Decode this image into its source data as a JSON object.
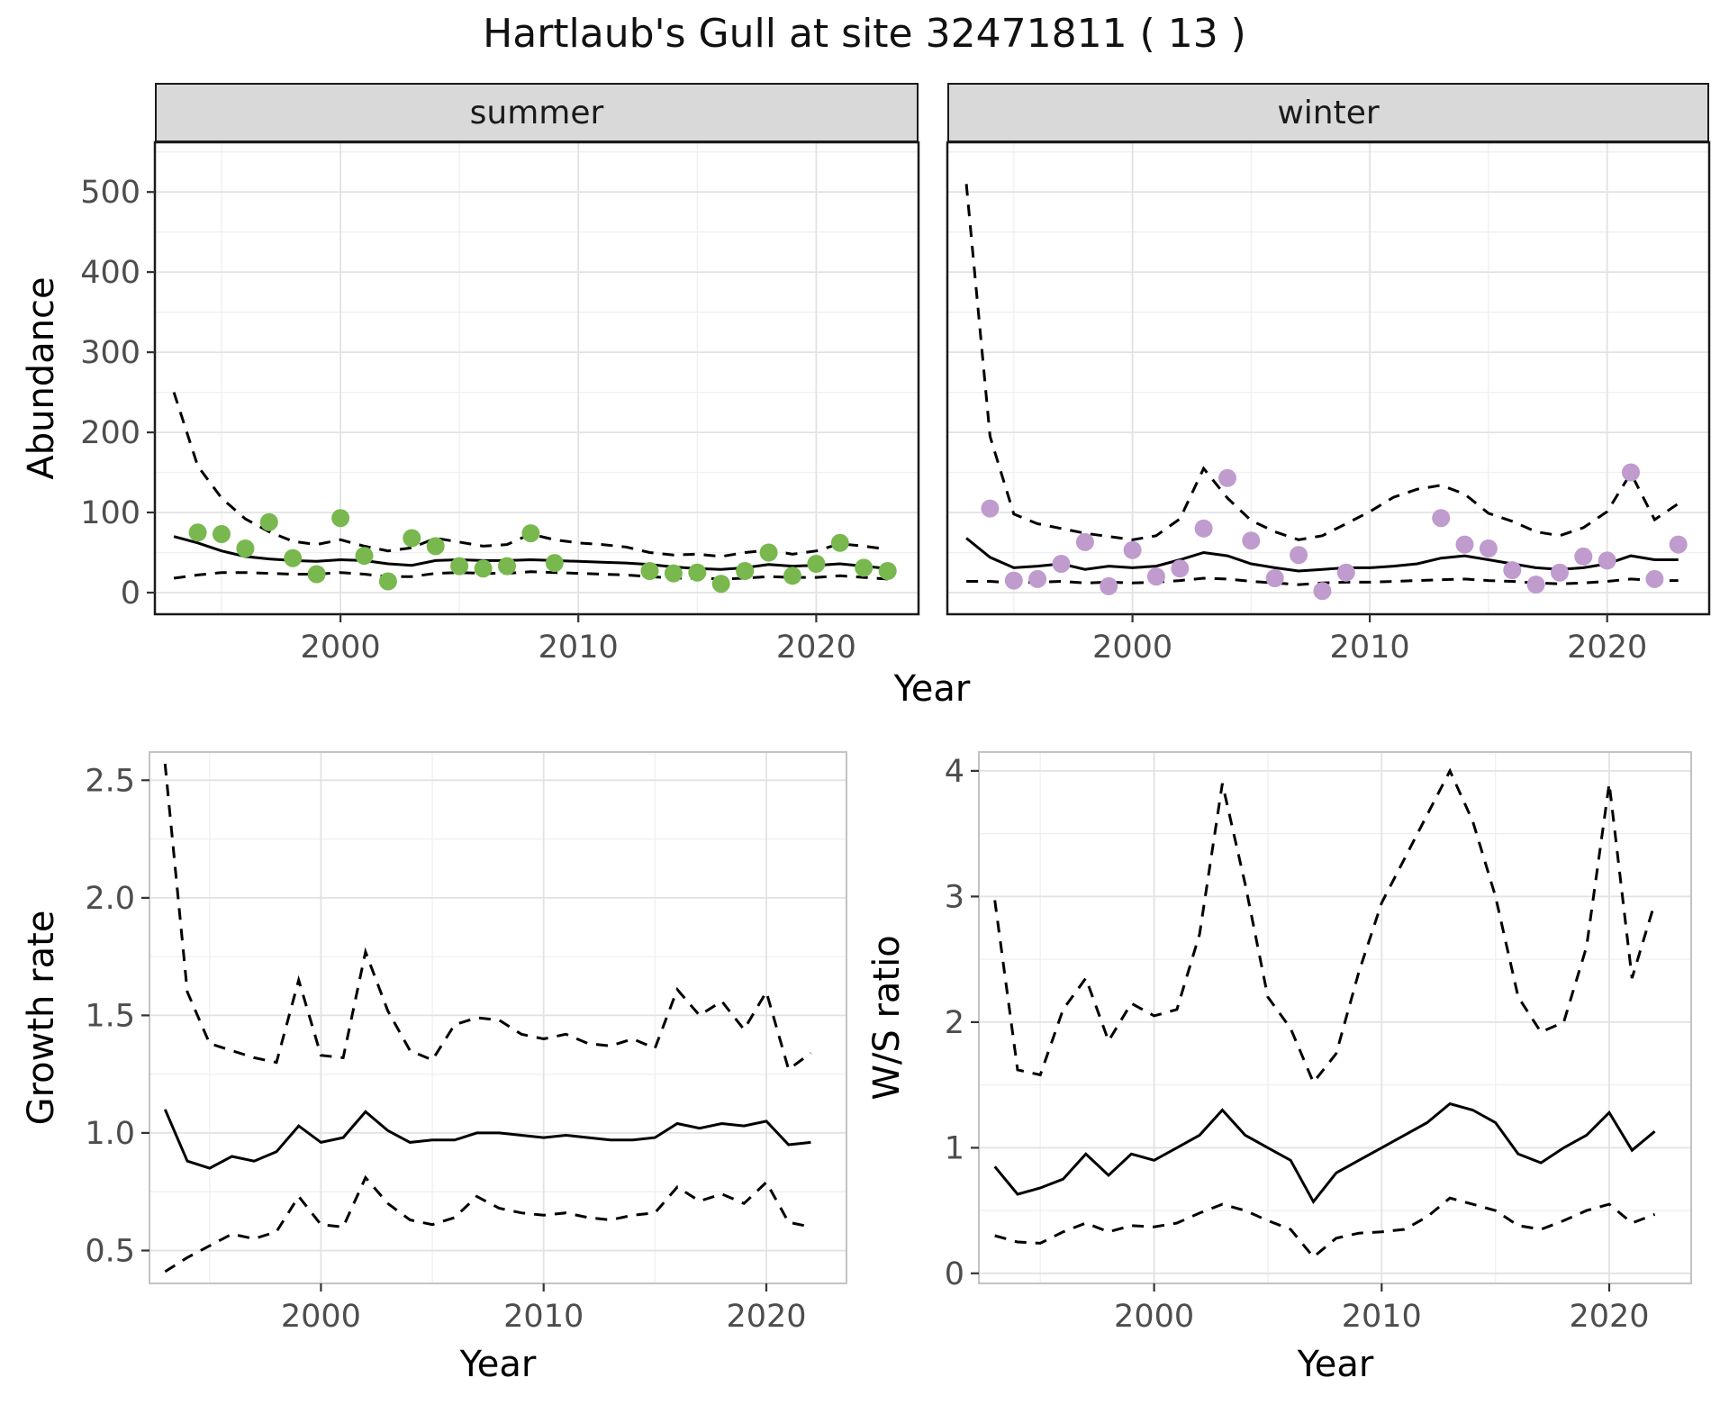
{
  "title": "Hartlaub's Gull at site 32471811 ( 13 )",
  "theme": {
    "panel_bg": "#FFFFFF",
    "strip_bg": "#D9D9D9",
    "grid_major": "#E2E2E2",
    "grid_minor": "#EFEFEF",
    "border_strong": "#1A1A1A",
    "border_soft": "#C3C3C3",
    "tick_color": "#333333",
    "tick_label_color": "#4D4D4D",
    "line_color": "#000000",
    "summer_point_color": "#78B84E",
    "winter_point_color": "#C09BCE"
  },
  "chart_data": [
    {
      "id": "abundance-summer",
      "type": "scatter",
      "facet": "summer",
      "xlabel": "Year",
      "ylabel": "Abundance",
      "xlim": [
        1992.2,
        2024.3
      ],
      "ylim": [
        -27,
        562
      ],
      "xticks": [
        2000,
        2010,
        2020
      ],
      "xtick_labels": [
        "2000",
        "2010",
        "2020"
      ],
      "yticks": [
        0,
        100,
        200,
        300,
        400,
        500
      ],
      "ytick_labels": [
        "0",
        "100",
        "200",
        "300",
        "400",
        "500"
      ],
      "x_minor": [
        1995,
        2005,
        2015
      ],
      "y_minor": [
        50,
        150,
        250,
        350,
        450,
        550
      ],
      "show_y_axis": true,
      "border": "strong",
      "point_color": "#78B84E",
      "line_x": [
        1993,
        1994,
        1995,
        1996,
        1997,
        1998,
        1999,
        2000,
        2001,
        2002,
        2003,
        2004,
        2005,
        2006,
        2007,
        2008,
        2009,
        2010,
        2011,
        2012,
        2013,
        2014,
        2015,
        2016,
        2017,
        2018,
        2019,
        2020,
        2021,
        2022,
        2023
      ],
      "fit": [
        70,
        62,
        52,
        45,
        42,
        40,
        39,
        41,
        40,
        36,
        34,
        40,
        41,
        40,
        40,
        41,
        40,
        39,
        38,
        37,
        35,
        32,
        30,
        29,
        31,
        35,
        33,
        34,
        36,
        33,
        30
      ],
      "upper": [
        250,
        158,
        118,
        92,
        76,
        64,
        60,
        66,
        58,
        52,
        56,
        68,
        63,
        58,
        60,
        73,
        66,
        62,
        60,
        57,
        50,
        47,
        48,
        45,
        50,
        53,
        48,
        52,
        61,
        58,
        54
      ],
      "lower": [
        18,
        22,
        25,
        25,
        24,
        23,
        23,
        25,
        23,
        20,
        20,
        24,
        25,
        24,
        24,
        26,
        25,
        24,
        23,
        22,
        20,
        18,
        18,
        17,
        18,
        20,
        19,
        19,
        21,
        19,
        17
      ],
      "points_x": [
        1994,
        1995,
        1996,
        1997,
        1998,
        1999,
        2000,
        2001,
        2002,
        2003,
        2004,
        2005,
        2006,
        2007,
        2008,
        2009,
        2013,
        2014,
        2015,
        2016,
        2017,
        2018,
        2019,
        2020,
        2021,
        2022,
        2023
      ],
      "points_y": [
        75,
        73,
        55,
        88,
        43,
        23,
        93,
        46,
        14,
        68,
        58,
        33,
        30,
        33,
        74,
        37,
        27,
        24,
        25,
        11,
        27,
        50,
        21,
        36,
        62,
        31,
        27
      ]
    },
    {
      "id": "abundance-winter",
      "type": "scatter",
      "facet": "winter",
      "xlabel": "Year",
      "ylabel": "Abundance",
      "xlim": [
        1992.2,
        2024.3
      ],
      "ylim": [
        -27,
        562
      ],
      "xticks": [
        2000,
        2010,
        2020
      ],
      "xtick_labels": [
        "2000",
        "2010",
        "2020"
      ],
      "yticks": [
        0,
        100,
        200,
        300,
        400,
        500
      ],
      "ytick_labels": [
        "0",
        "100",
        "200",
        "300",
        "400",
        "500"
      ],
      "x_minor": [
        1995,
        2005,
        2015
      ],
      "y_minor": [
        50,
        150,
        250,
        350,
        450,
        550
      ],
      "show_y_axis": false,
      "border": "strong",
      "point_color": "#C09BCE",
      "line_x": [
        1993,
        1994,
        1995,
        1996,
        1997,
        1998,
        1999,
        2000,
        2001,
        2002,
        2003,
        2004,
        2005,
        2006,
        2007,
        2008,
        2009,
        2010,
        2011,
        2012,
        2013,
        2014,
        2015,
        2016,
        2017,
        2018,
        2019,
        2020,
        2021,
        2022,
        2023
      ],
      "fit": [
        68,
        44,
        31,
        33,
        36,
        29,
        33,
        31,
        33,
        41,
        50,
        46,
        36,
        31,
        27,
        29,
        31,
        31,
        33,
        36,
        43,
        46,
        41,
        36,
        31,
        29,
        31,
        36,
        46,
        41,
        41
      ],
      "upper": [
        510,
        195,
        98,
        86,
        80,
        74,
        70,
        66,
        71,
        92,
        155,
        118,
        90,
        76,
        66,
        71,
        86,
        101,
        119,
        129,
        134,
        123,
        99,
        89,
        76,
        71,
        81,
        101,
        149,
        91,
        111
      ],
      "lower": [
        14,
        14,
        12,
        13,
        14,
        12,
        13,
        12,
        13,
        15,
        18,
        17,
        14,
        12,
        10,
        12,
        13,
        13,
        14,
        15,
        16,
        17,
        15,
        14,
        12,
        11,
        12,
        14,
        17,
        15,
        15
      ],
      "points_x": [
        1994,
        1995,
        1996,
        1997,
        1998,
        1999,
        2000,
        2001,
        2002,
        2003,
        2004,
        2005,
        2006,
        2007,
        2008,
        2009,
        2013,
        2014,
        2015,
        2016,
        2017,
        2018,
        2019,
        2020,
        2021,
        2022,
        2023
      ],
      "points_y": [
        105,
        15,
        17,
        36,
        63,
        8,
        53,
        20,
        30,
        80,
        143,
        65,
        18,
        47,
        2,
        25,
        93,
        60,
        55,
        28,
        10,
        25,
        45,
        40,
        150,
        17,
        60
      ]
    },
    {
      "id": "growth-rate",
      "type": "line",
      "xlabel": "Year",
      "ylabel": "Growth rate",
      "xlim": [
        1992.3,
        2023.6
      ],
      "ylim": [
        0.36,
        2.62
      ],
      "xticks": [
        2000,
        2010,
        2020
      ],
      "xtick_labels": [
        "2000",
        "2010",
        "2020"
      ],
      "yticks": [
        0.5,
        1.0,
        1.5,
        2.0,
        2.5
      ],
      "ytick_labels": [
        "0.5",
        "1.0",
        "1.5",
        "2.0",
        "2.5"
      ],
      "x_minor": [
        1995,
        2005,
        2015
      ],
      "y_minor": [
        0.75,
        1.25,
        1.75,
        2.25
      ],
      "show_y_axis": true,
      "border": "soft",
      "line_x": [
        1993,
        1994,
        1995,
        1996,
        1997,
        1998,
        1999,
        2000,
        2001,
        2002,
        2003,
        2004,
        2005,
        2006,
        2007,
        2008,
        2009,
        2010,
        2011,
        2012,
        2013,
        2014,
        2015,
        2016,
        2017,
        2018,
        2019,
        2020,
        2021,
        2022
      ],
      "fit": [
        1.1,
        0.88,
        0.85,
        0.9,
        0.88,
        0.92,
        1.03,
        0.96,
        0.98,
        1.09,
        1.01,
        0.96,
        0.97,
        0.97,
        1.0,
        1.0,
        0.99,
        0.98,
        0.99,
        0.98,
        0.97,
        0.97,
        0.98,
        1.04,
        1.02,
        1.04,
        1.03,
        1.05,
        0.95,
        0.96
      ],
      "upper": [
        2.57,
        1.6,
        1.38,
        1.35,
        1.32,
        1.3,
        1.65,
        1.33,
        1.32,
        1.77,
        1.52,
        1.35,
        1.31,
        1.46,
        1.49,
        1.48,
        1.42,
        1.4,
        1.42,
        1.38,
        1.37,
        1.4,
        1.36,
        1.61,
        1.5,
        1.56,
        1.44,
        1.6,
        1.27,
        1.34
      ],
      "lower": [
        0.41,
        0.47,
        0.52,
        0.57,
        0.55,
        0.58,
        0.73,
        0.61,
        0.6,
        0.81,
        0.7,
        0.63,
        0.61,
        0.64,
        0.73,
        0.68,
        0.66,
        0.65,
        0.66,
        0.64,
        0.63,
        0.65,
        0.66,
        0.77,
        0.71,
        0.74,
        0.7,
        0.79,
        0.62,
        0.6
      ]
    },
    {
      "id": "ws-ratio",
      "type": "line",
      "xlabel": "Year",
      "ylabel": "W/S ratio",
      "xlim": [
        1992.3,
        2023.6
      ],
      "ylim": [
        -0.08,
        4.15
      ],
      "xticks": [
        2000,
        2010,
        2020
      ],
      "xtick_labels": [
        "2000",
        "2010",
        "2020"
      ],
      "yticks": [
        0,
        1,
        2,
        3,
        4
      ],
      "ytick_labels": [
        "0",
        "1",
        "2",
        "3",
        "4"
      ],
      "x_minor": [
        1995,
        2005,
        2015
      ],
      "y_minor": [
        0.5,
        1.5,
        2.5,
        3.5
      ],
      "show_y_axis": true,
      "border": "soft",
      "line_x": [
        1993,
        1994,
        1995,
        1996,
        1997,
        1998,
        1999,
        2000,
        2001,
        2002,
        2003,
        2004,
        2005,
        2006,
        2007,
        2008,
        2009,
        2010,
        2011,
        2012,
        2013,
        2014,
        2015,
        2016,
        2017,
        2018,
        2019,
        2020,
        2021,
        2022
      ],
      "fit": [
        0.85,
        0.63,
        0.68,
        0.75,
        0.95,
        0.78,
        0.95,
        0.9,
        1.0,
        1.1,
        1.3,
        1.1,
        1.0,
        0.9,
        0.57,
        0.8,
        0.9,
        1.0,
        1.1,
        1.2,
        1.35,
        1.3,
        1.2,
        0.95,
        0.88,
        1.0,
        1.1,
        1.28,
        0.98,
        1.13
      ],
      "upper": [
        2.97,
        1.62,
        1.58,
        2.1,
        2.35,
        1.85,
        2.15,
        2.05,
        2.1,
        2.7,
        3.9,
        3.1,
        2.2,
        1.95,
        1.52,
        1.75,
        2.4,
        2.95,
        3.3,
        3.65,
        4.0,
        3.6,
        3.0,
        2.2,
        1.92,
        2.0,
        2.6,
        3.9,
        2.35,
        2.95
      ],
      "lower": [
        0.3,
        0.25,
        0.24,
        0.33,
        0.4,
        0.33,
        0.38,
        0.37,
        0.4,
        0.48,
        0.55,
        0.5,
        0.42,
        0.35,
        0.13,
        0.28,
        0.32,
        0.33,
        0.35,
        0.45,
        0.6,
        0.55,
        0.5,
        0.38,
        0.35,
        0.42,
        0.5,
        0.55,
        0.4,
        0.47
      ]
    }
  ]
}
